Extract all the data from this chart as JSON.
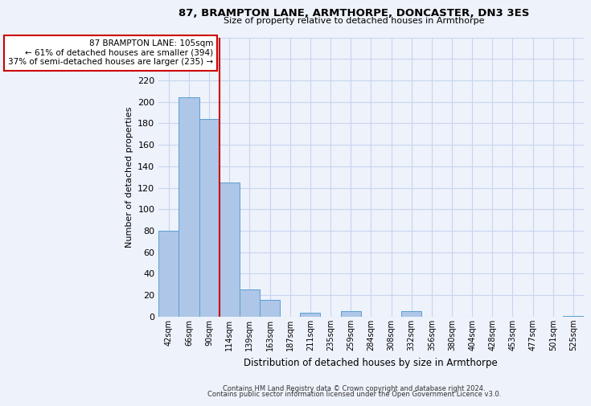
{
  "title": "87, BRAMPTON LANE, ARMTHORPE, DONCASTER, DN3 3ES",
  "subtitle": "Size of property relative to detached houses in Armthorpe",
  "xlabel": "Distribution of detached houses by size in Armthorpe",
  "ylabel": "Number of detached properties",
  "footnote1": "Contains HM Land Registry data © Crown copyright and database right 2024.",
  "footnote2": "Contains public sector information licensed under the Open Government Licence v3.0.",
  "bin_labels": [
    "42sqm",
    "66sqm",
    "90sqm",
    "114sqm",
    "139sqm",
    "163sqm",
    "187sqm",
    "211sqm",
    "235sqm",
    "259sqm",
    "284sqm",
    "308sqm",
    "332sqm",
    "356sqm",
    "380sqm",
    "404sqm",
    "428sqm",
    "453sqm",
    "477sqm",
    "501sqm",
    "525sqm"
  ],
  "bar_values": [
    80,
    204,
    184,
    125,
    25,
    16,
    0,
    4,
    0,
    5,
    0,
    0,
    5,
    0,
    0,
    0,
    0,
    0,
    0,
    0,
    1
  ],
  "bar_color": "#aec6e8",
  "bar_edge_color": "#5a9fd4",
  "vline_bin": 2,
  "vline_color": "#cc0000",
  "ylim": [
    0,
    260
  ],
  "yticks": [
    0,
    20,
    40,
    60,
    80,
    100,
    120,
    140,
    160,
    180,
    200,
    220,
    240,
    260
  ],
  "annotation_title": "87 BRAMPTON LANE: 105sqm",
  "annotation_line1": "← 61% of detached houses are smaller (394)",
  "annotation_line2": "37% of semi-detached houses are larger (235) →",
  "annotation_box_color": "#ffffff",
  "annotation_box_edge": "#cc0000",
  "bg_color": "#eef2fb",
  "grid_color": "#c8d4f0"
}
